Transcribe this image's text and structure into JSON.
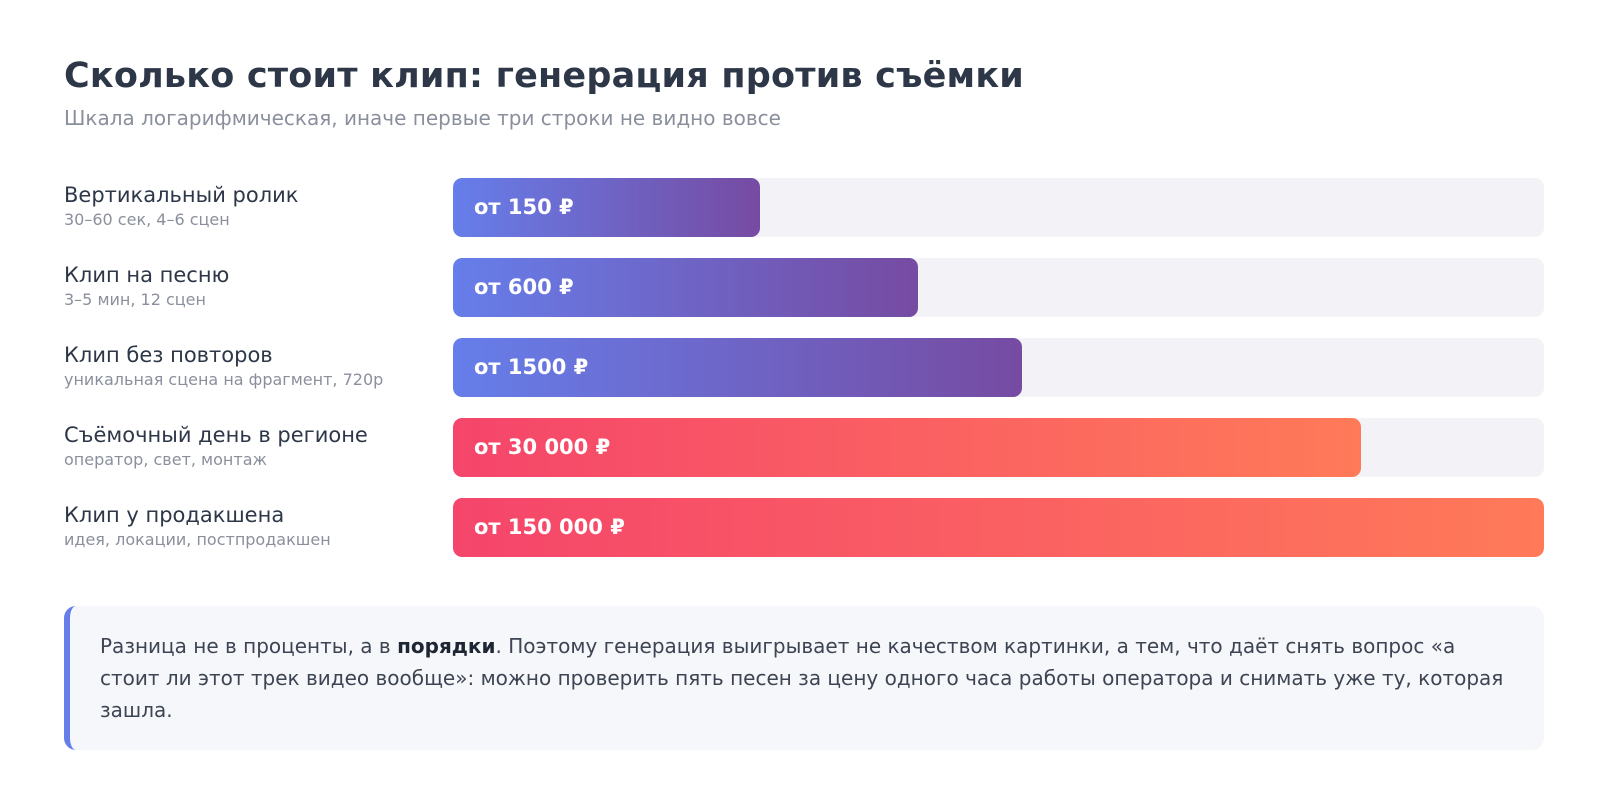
{
  "header": {
    "title": "Сколько стоит клип: генерация против съёмки",
    "subtitle": "Шкала логарифмическая, иначе первые три строки не видно вовсе"
  },
  "chart_data": {
    "type": "bar",
    "orientation": "horizontal",
    "scale": "log",
    "xlim": [
      10,
      150000
    ],
    "categories": [
      "Вертикальный ролик",
      "Клип на песню",
      "Клип без повторов",
      "Съёмочный день в регионе",
      "Клип у продакшена"
    ],
    "descriptions": [
      "30–60 сек, 4–6 сцен",
      "3–5 мин, 12 сцен",
      "уникальная сцена на фрагмент, 720p",
      "оператор, свет, монтаж",
      "идея, локации, постпродакшен"
    ],
    "values": [
      150,
      600,
      1500,
      30000,
      150000
    ],
    "value_labels": [
      "от 150 ₽",
      "от 600 ₽",
      "от 1500 ₽",
      "от 30 000 ₽",
      "от 150 000 ₽"
    ],
    "groups": [
      "gen",
      "gen",
      "gen",
      "shoot",
      "shoot"
    ],
    "colors": {
      "gen": [
        "#667eea",
        "#764ba2"
      ],
      "shoot": [
        "#f5456b",
        "#ff7a59"
      ],
      "track": "#f3f2f7"
    }
  },
  "note": {
    "text_before": "Разница не в проценты, а в ",
    "text_bold": "порядки",
    "text_after": ". Поэтому генерация выигрывает не качеством картинки, а тем, что даёт снять вопрос «а стоит ли этот трек видео вообще»: можно проверить пять песен за цену одного часа работы оператора и снимать уже ту, которая зашла."
  }
}
